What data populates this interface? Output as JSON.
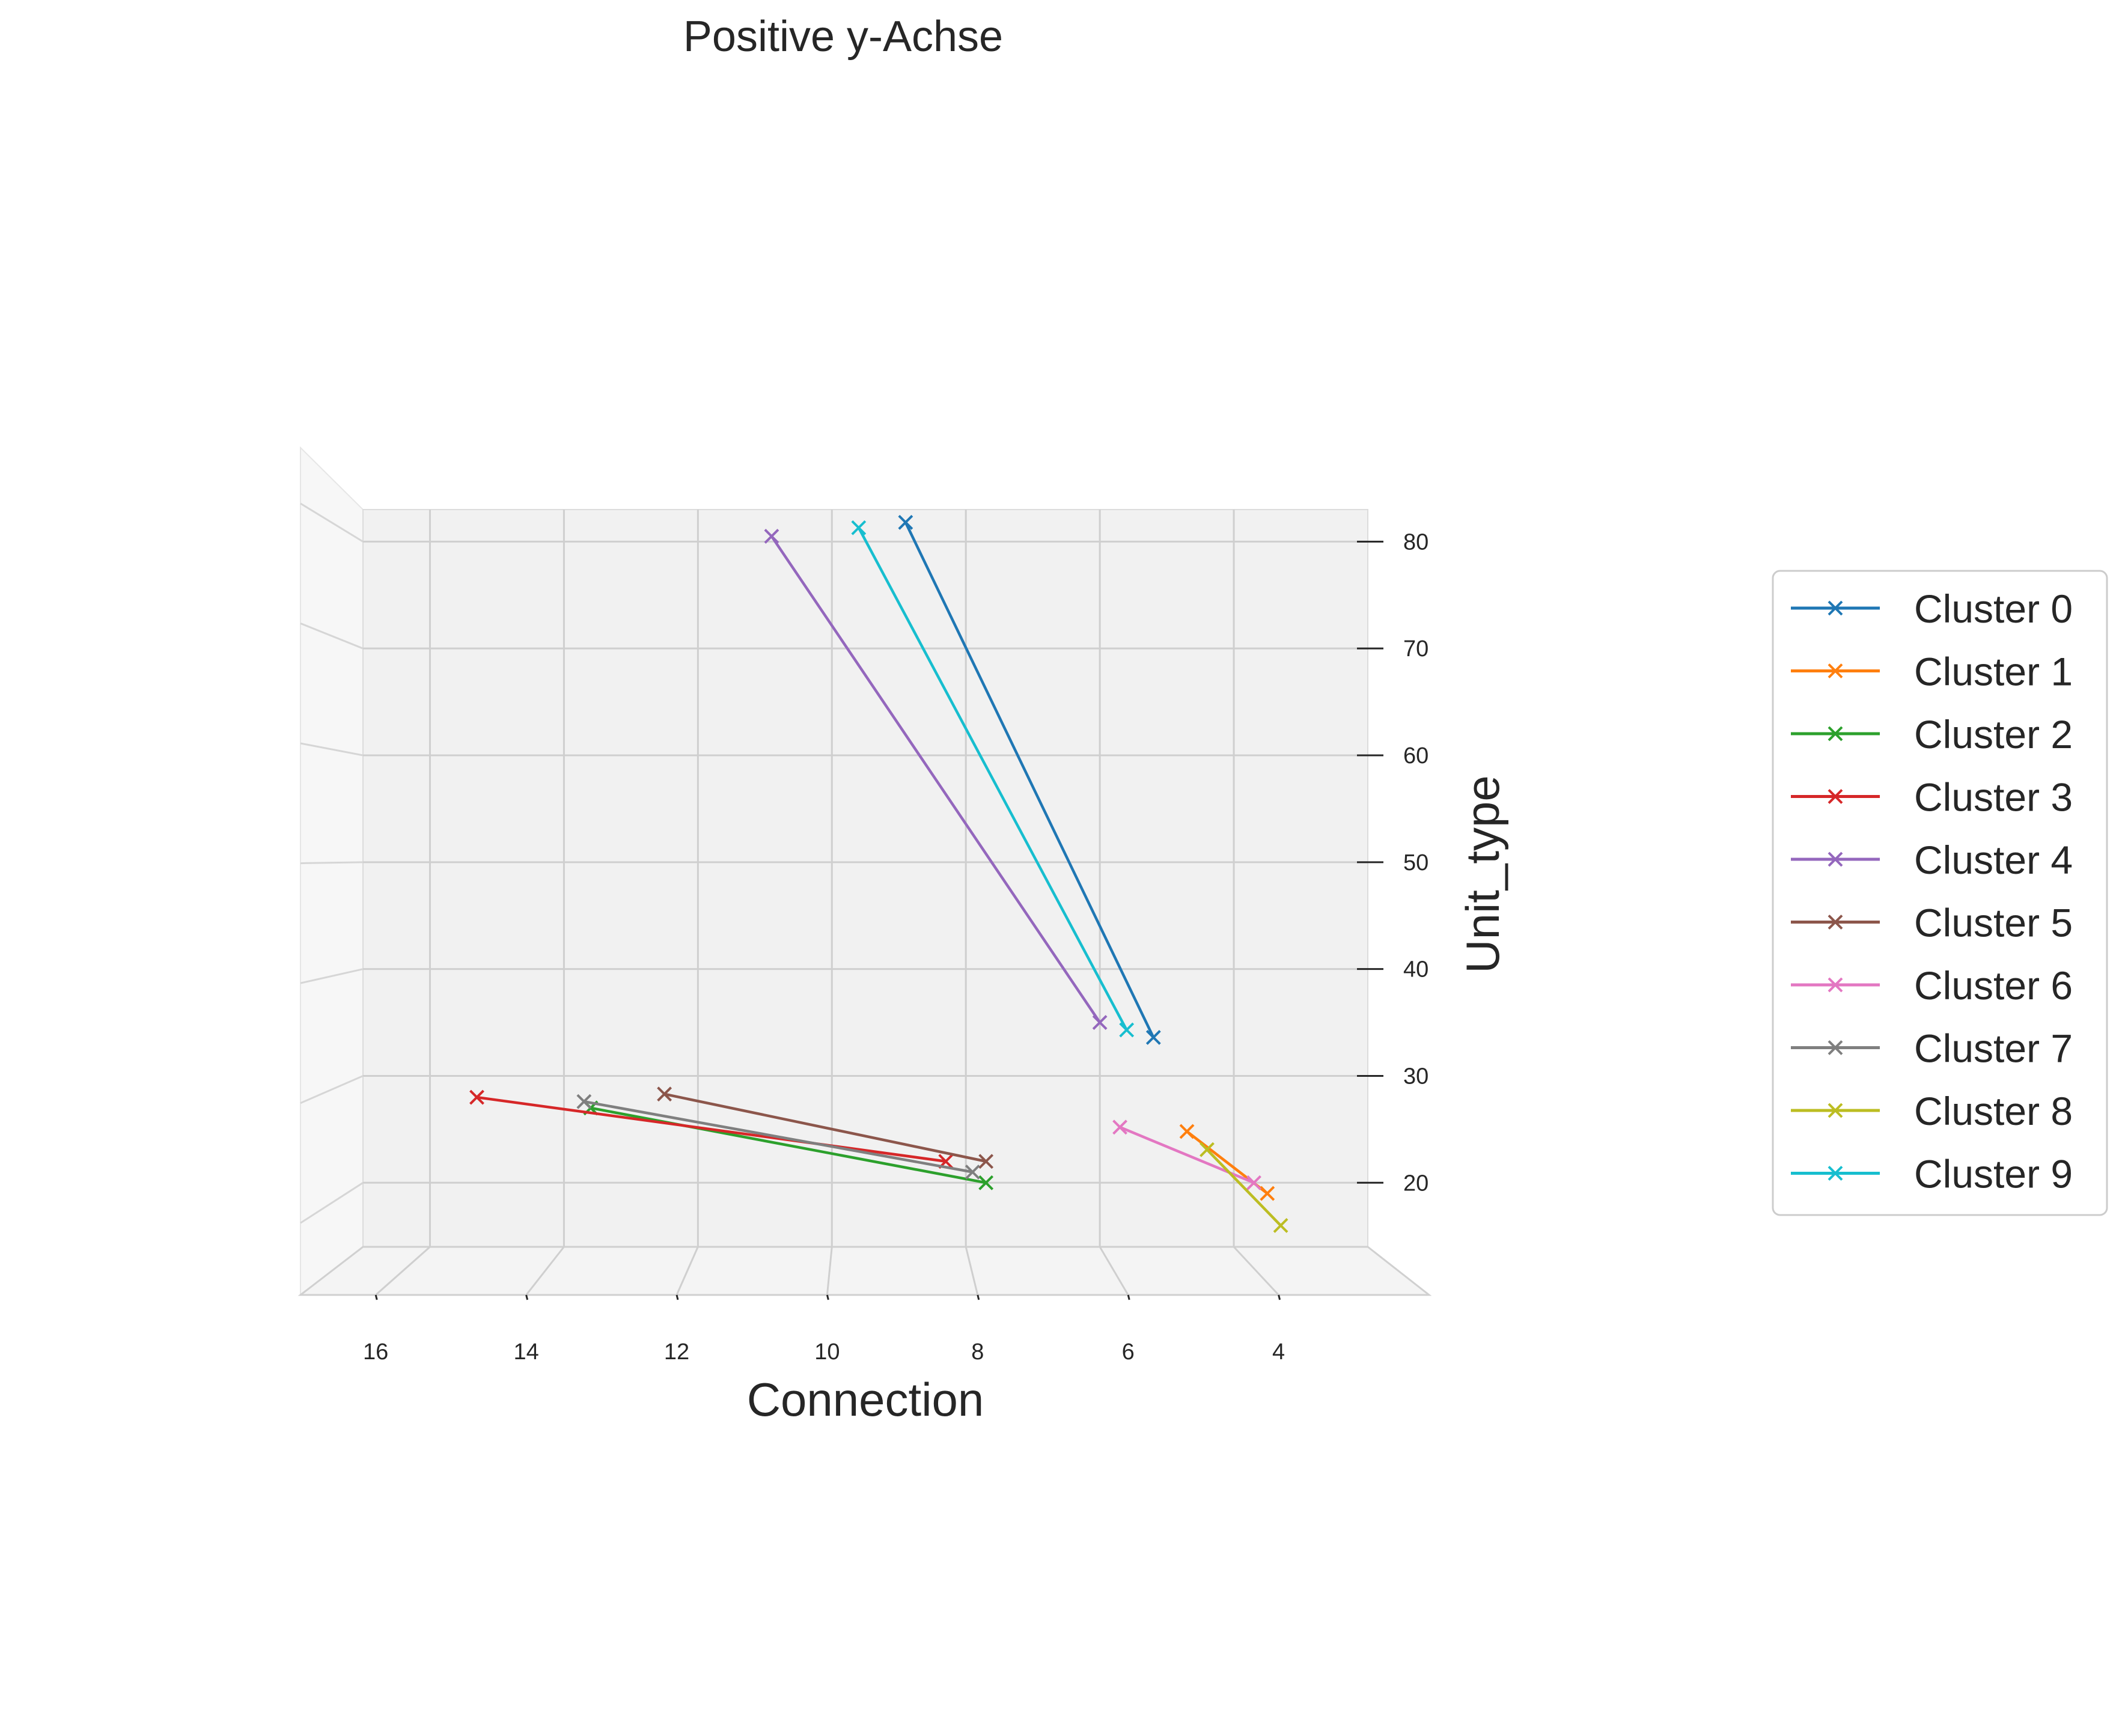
{
  "chart_data": {
    "type": "line",
    "title": "Positive y-Achse",
    "xlabel": "Connection",
    "zlabel": "Unit_type",
    "xlim": [
      17,
      2
    ],
    "zlim": [
      14,
      83
    ],
    "x_ticks": [
      16,
      14,
      12,
      10,
      8,
      6,
      4
    ],
    "z_ticks": [
      20,
      30,
      40,
      50,
      60,
      70,
      80
    ],
    "grid": true,
    "legend_position": "right",
    "marker": "x",
    "series": [
      {
        "name": "Cluster 0",
        "color": "#1f77b4",
        "points": [
          {
            "x": 8.9,
            "y": 81.8
          },
          {
            "x": 5.2,
            "y": 33.6
          }
        ]
      },
      {
        "name": "Cluster 1",
        "color": "#ff7f0e",
        "points": [
          {
            "x": 4.7,
            "y": 24.8
          },
          {
            "x": 3.5,
            "y": 19.0
          }
        ]
      },
      {
        "name": "Cluster 2",
        "color": "#2ca02c",
        "points": [
          {
            "x": 13.6,
            "y": 27.0
          },
          {
            "x": 7.7,
            "y": 20.0
          }
        ]
      },
      {
        "name": "Cluster 3",
        "color": "#d62728",
        "points": [
          {
            "x": 15.3,
            "y": 28.0
          },
          {
            "x": 8.3,
            "y": 22.0
          }
        ]
      },
      {
        "name": "Cluster 4",
        "color": "#9467bd",
        "points": [
          {
            "x": 10.9,
            "y": 80.5
          },
          {
            "x": 6.0,
            "y": 35.0
          }
        ]
      },
      {
        "name": "Cluster 5",
        "color": "#8c564b",
        "points": [
          {
            "x": 12.5,
            "y": 28.3
          },
          {
            "x": 7.7,
            "y": 22.0
          }
        ]
      },
      {
        "name": "Cluster 6",
        "color": "#e377c2",
        "points": [
          {
            "x": 5.7,
            "y": 25.2
          },
          {
            "x": 3.7,
            "y": 20.0
          }
        ]
      },
      {
        "name": "Cluster 7",
        "color": "#7f7f7f",
        "points": [
          {
            "x": 13.7,
            "y": 27.6
          },
          {
            "x": 7.9,
            "y": 21.0
          }
        ]
      },
      {
        "name": "Cluster 8",
        "color": "#bcbd22",
        "points": [
          {
            "x": 4.4,
            "y": 23.1
          },
          {
            "x": 3.3,
            "y": 16.0
          }
        ]
      },
      {
        "name": "Cluster 9",
        "color": "#17becf",
        "points": [
          {
            "x": 9.6,
            "y": 81.3
          },
          {
            "x": 5.6,
            "y": 34.3
          }
        ]
      }
    ]
  }
}
